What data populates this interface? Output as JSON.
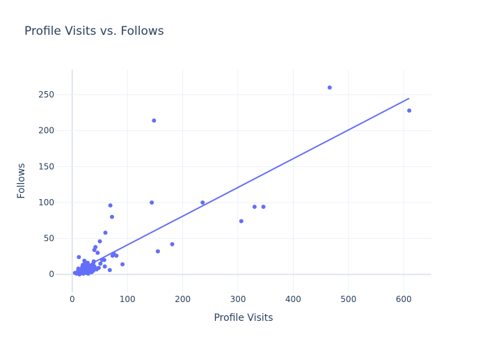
{
  "chart_data": {
    "type": "scatter",
    "title": "Profile Visits vs. Follows",
    "xlabel": "Profile Visits",
    "ylabel": "Follows",
    "xlim": [
      -30,
      650
    ],
    "ylim": [
      -25,
      285
    ],
    "x_ticks": [
      0,
      100,
      200,
      300,
      400,
      500,
      600
    ],
    "y_ticks": [
      0,
      50,
      100,
      150,
      200,
      250
    ],
    "grid": true,
    "legend": "none",
    "colors": {
      "marker": "#636efa",
      "trendline": "#636efa",
      "grid": "#ebf0f8",
      "text": "#2a3f5f"
    },
    "series": [
      {
        "points": [
          [
            5,
            2
          ],
          [
            8,
            1
          ],
          [
            10,
            4
          ],
          [
            11,
            8
          ],
          [
            12,
            24
          ],
          [
            13,
            0
          ],
          [
            14,
            6
          ],
          [
            15,
            3
          ],
          [
            16,
            2
          ],
          [
            17,
            5
          ],
          [
            18,
            10
          ],
          [
            19,
            13
          ],
          [
            20,
            1
          ],
          [
            20,
            7
          ],
          [
            21,
            3
          ],
          [
            22,
            19
          ],
          [
            22,
            12
          ],
          [
            23,
            17
          ],
          [
            24,
            6
          ],
          [
            25,
            14
          ],
          [
            26,
            9
          ],
          [
            26,
            2
          ],
          [
            27,
            4
          ],
          [
            28,
            16
          ],
          [
            28,
            11
          ],
          [
            29,
            1
          ],
          [
            30,
            8
          ],
          [
            31,
            12
          ],
          [
            32,
            5
          ],
          [
            33,
            10
          ],
          [
            34,
            7
          ],
          [
            35,
            3
          ],
          [
            36,
            13
          ],
          [
            37,
            9
          ],
          [
            38,
            5
          ],
          [
            38,
            15
          ],
          [
            39,
            18
          ],
          [
            40,
            34
          ],
          [
            40,
            11
          ],
          [
            42,
            38
          ],
          [
            44,
            7
          ],
          [
            45,
            8
          ],
          [
            46,
            30
          ],
          [
            48,
            9
          ],
          [
            50,
            46
          ],
          [
            51,
            15
          ],
          [
            54,
            20
          ],
          [
            58,
            20
          ],
          [
            59,
            11
          ],
          [
            60,
            58
          ],
          [
            68,
            6
          ],
          [
            69,
            96
          ],
          [
            72,
            80
          ],
          [
            73,
            26
          ],
          [
            75,
            29
          ],
          [
            80,
            26
          ],
          [
            91,
            14
          ],
          [
            144,
            100
          ],
          [
            148,
            214
          ],
          [
            155,
            32
          ],
          [
            181,
            42
          ],
          [
            236,
            100
          ],
          [
            306,
            74
          ],
          [
            330,
            94
          ],
          [
            346,
            94
          ],
          [
            466,
            260
          ],
          [
            610,
            228
          ]
        ]
      }
    ],
    "trendline": {
      "x": [
        5,
        610
      ],
      "y": [
        3,
        245
      ]
    }
  }
}
